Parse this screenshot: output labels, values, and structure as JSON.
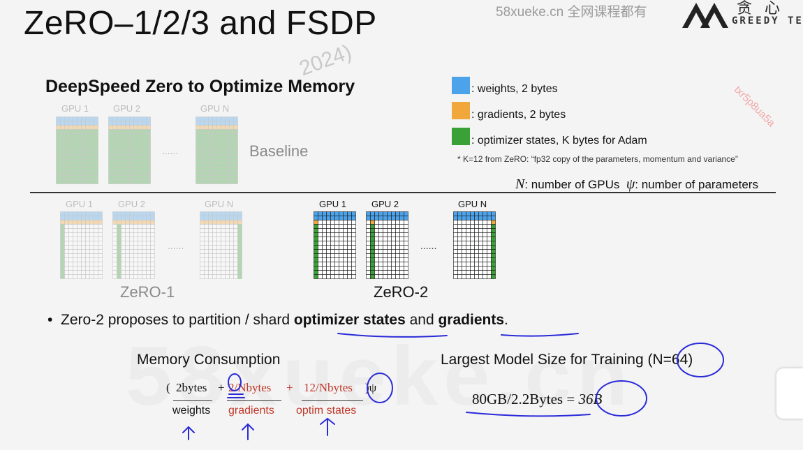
{
  "title": "ZeRO–1/2/3 and FSDP",
  "watermark_top": "58xueke.cn 全网课程都有",
  "logo_text": "GREEDY TE",
  "logo_cn": "贪心",
  "diagonal_watermark": "txr5p8ua5a",
  "faint_year": "2024)",
  "big_watermark": "58xueke.cn",
  "section_heading": "DeepSpeed Zero to Optimize Memory",
  "colors": {
    "weights": "#4da3ea",
    "gradients": "#f0a73c",
    "optimizer": "#3aa136",
    "grid_line": "#1a1a1a",
    "annotation": "#2a2ad8",
    "red_text": "#c0392b"
  },
  "legend": [
    {
      "color_key": "weights",
      "text": ": weights,  2 bytes"
    },
    {
      "color_key": "gradients",
      "text": ": gradients, 2 bytes"
    },
    {
      "color_key": "optimizer",
      "text": ": optimizer states, K bytes for Adam"
    }
  ],
  "footnote": "* K=12 from ZeRO: “fp32 copy of the parameters, momentum and variance”",
  "n_definition": {
    "n_symbol": "N",
    "n_text": ": number of GPUs",
    "psi_symbol": "ψ",
    "psi_text": ": number of parameters"
  },
  "groups": {
    "baseline": {
      "label": "Baseline",
      "gpus": [
        "GPU 1",
        "GPU 2",
        "GPU N"
      ],
      "dots": "......"
    },
    "zero1": {
      "label": "ZeRO-1",
      "gpus": [
        "GPU 1",
        "GPU 2",
        "GPU N"
      ],
      "dots": "......"
    },
    "zero2": {
      "label": "ZeRO-2",
      "gpus": [
        "GPU 1",
        "GPU 2",
        "GPU N"
      ],
      "dots": "......"
    }
  },
  "bullet": {
    "prefix": "Zero-2 proposes to partition / shard ",
    "bold1": "optimizer states",
    "mid": " and ",
    "bold2": "gradients",
    "suffix": "."
  },
  "memory": {
    "title": "Memory Consumption",
    "open_paren": "(",
    "t1": "2bytes",
    "plus1": "+",
    "t2": "2/Nbytes",
    "plus2": "+",
    "t3": "12/Nbytes",
    "close": ")ψ",
    "l1": "weights",
    "l2": "gradients",
    "l3": "optim states"
  },
  "largest": {
    "title": "Largest Model Size for Training ",
    "n_value": "(N=64)",
    "equation": "80GB/2.2Bytes = ",
    "result": "36B"
  }
}
